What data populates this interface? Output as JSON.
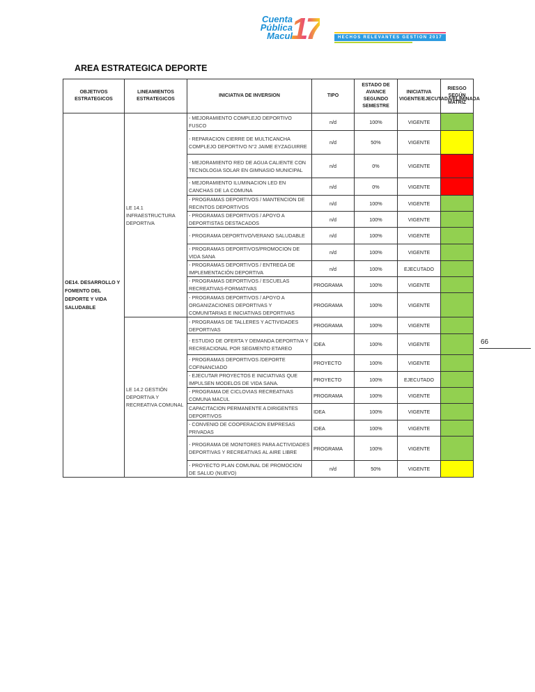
{
  "header": {
    "logo_text": "Cuenta Pública Macul 17",
    "banner": "HECHOS RELEVANTES GESTION 2017"
  },
  "title": "AREA ESTRATEGICA DEPORTE",
  "columns": [
    "OBJETIVOS ESTRATEGICOS",
    "LINEAMIENTOS ESTRATEGICOS",
    "INICIATIVA DE INVERSION",
    "TIPO",
    "ESTADO DE AVANCE SEGUNDO SEMESTRE",
    "INICIATIVA VIGENTE/EJECUTADA/ELIMINADA",
    "RIESGO SEGÚN MATRIZ"
  ],
  "objective": "OE14. DESARROLLO Y FOMENTO DEL DEPORTE Y VIDA SALUDABLE",
  "risk_colors": {
    "green": "#92d050",
    "yellow": "#ffff00",
    "red": "#ff0000"
  },
  "groups": [
    {
      "lineamiento": "LE 14.1 INFRAESTRUCTURA DEPORTIVA",
      "rows": [
        {
          "iniciativa": "- MEJORAMIENTO COMPLEJO DEPORTIVO FUSCO",
          "tipo": "n/d",
          "avance": "100%",
          "estado": "VIGENTE",
          "riesgo": "green"
        },
        {
          "iniciativa": "- REPARACION CIERRE DE MULTICANCHA COMPLEJO DEPORTIVO N°2 JAIME EYZAGUIRRE",
          "tipo": "n/d",
          "avance": "50%",
          "estado": "VIGENTE",
          "riesgo": "yellow"
        },
        {
          "iniciativa": "- MEJORAMIENTO RED DE AGUA CALIENTE CON TECNOLOGIA SOLAR EN GIMNASIO MUNICIPAL",
          "tipo": "n/d",
          "avance": "0%",
          "estado": "VIGENTE",
          "riesgo": "red"
        },
        {
          "iniciativa": "- MEJORAMIENTO ILUMINACION LED EN CANCHAS DE LA COMUNA",
          "tipo": "n/d",
          "avance": "0%",
          "estado": "VIGENTE",
          "riesgo": "red"
        },
        {
          "iniciativa": "- PROGRAMAS DEPORTIVOS / MANTENCION DE RECINTOS DEPORTIVOS",
          "tipo": "n/d",
          "avance": "100%",
          "estado": "VIGENTE",
          "riesgo": "green"
        },
        {
          "iniciativa": "- PROGRAMAS DEPORTIVOS / APOYO A DEPORTISTAS DESTACADOS",
          "tipo": "n/d",
          "avance": "100%",
          "estado": "VIGENTE",
          "riesgo": "green"
        },
        {
          "iniciativa": "- PROGRAMA DEPORTIVO/VERANO SALUDABLE",
          "tipo": "n/d",
          "avance": "100%",
          "estado": "VIGENTE",
          "riesgo": "green"
        },
        {
          "iniciativa": "- PROGRAMAS DEPORTIVOS/PROMOCION DE VIDA SANA",
          "tipo": "n/d",
          "avance": "100%",
          "estado": "VIGENTE",
          "riesgo": "green"
        },
        {
          "iniciativa": "- PROGRAMAS DEPORTIVOS / ENTREGA DE IMPLEMENTACIÓN DEPORTIVA",
          "tipo": "n/d",
          "avance": "100%",
          "estado": "EJECUTADO",
          "riesgo": "green"
        },
        {
          "iniciativa": "- PROGRAMAS DEPORTIVOS / ESCUELAS RECREATIVAS-FORMATIVAS",
          "tipo": "PROGRAMA",
          "avance": "100%",
          "estado": "VIGENTE",
          "riesgo": "green"
        },
        {
          "iniciativa": "- PROGRAMAS DEPORTIVOS / APOYO A ORGANIZACIONES DEPORTIVAS Y COMUNITARIAS E INICIATIVAS DEPORTIVAS",
          "tipo": "PROGRAMA",
          "avance": "100%",
          "estado": "VIGENTE",
          "riesgo": "green"
        }
      ]
    },
    {
      "lineamiento": "LE 14.2 GESTIÓN DEPORTIVA Y RECREATIVA COMUNAL",
      "rows": [
        {
          "iniciativa": "- PROGRAMAS DE TALLERES Y ACTIVIDADES DEPORTIVAS",
          "tipo": "PROGRAMA",
          "avance": "100%",
          "estado": "VIGENTE",
          "riesgo": "green"
        },
        {
          "iniciativa": "- ESTUDIO DE OFERTA Y DEMANDA DEPORTIVA Y RECREACIONAL POR SEGMENTO ETAREO",
          "tipo": "IDEA",
          "avance": "100%",
          "estado": "VIGENTE",
          "riesgo": "green"
        },
        {
          "iniciativa": "- PROGRAMAS DEPORTIVOS /DEPORTE COFINANCIADO",
          "tipo": "PROYECTO",
          "avance": "100%",
          "estado": "VIGENTE",
          "riesgo": "green"
        },
        {
          "iniciativa": "- EJECUTAR PROYECTOS E INICIATIVAS QUE IMPULSEN MODELOS DE VIDA SANA.",
          "tipo": "PROYECTO",
          "avance": "100%",
          "estado": "EJECUTADO",
          "riesgo": "green"
        },
        {
          "iniciativa": "- PROGRAMA DE CICLOVIAS RECREATIVAS COMUNA MACUL",
          "tipo": "PROGRAMA",
          "avance": "100%",
          "estado": "VIGENTE",
          "riesgo": "green"
        },
        {
          "iniciativa": "CAPACITACION PERMANENTE A DIRIGENTES DEPORTIVOS",
          "tipo": "IDEA",
          "avance": "100%",
          "estado": "VIGENTE",
          "riesgo": "green"
        },
        {
          "iniciativa": "- CONVENIO DE COOPERACION EMPRESAS PRIVADAS",
          "tipo": "IDEA",
          "avance": "100%",
          "estado": "VIGENTE",
          "riesgo": "green"
        },
        {
          "iniciativa": "- PROGRAMA DE MONITORES PARA ACTIVIDADES DEPORTIVAS Y RECREATIVAS AL AIRE LIBRE",
          "tipo": "PROGRAMA",
          "avance": "100%",
          "estado": "VIGENTE",
          "riesgo": "green"
        },
        {
          "iniciativa": "- PROYECTO PLAN COMUNAL DE PROMOCION DE SALUD (NUEVO)",
          "tipo": "n/d",
          "avance": "50%",
          "estado": "VIGENTE",
          "riesgo": "yellow"
        }
      ]
    }
  ],
  "page_number": "66"
}
